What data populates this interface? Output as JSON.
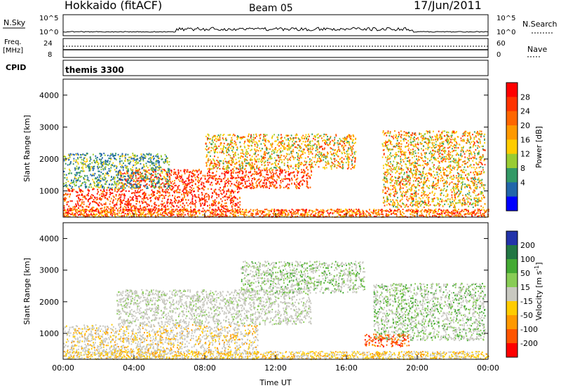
{
  "header": {
    "title": "Hokkaido (fitACF)",
    "beam": "Beam 05",
    "date": "17/Jun/2011"
  },
  "strip_panels": {
    "nsky_label": "N.Sky",
    "nsearch_label": "N.Search",
    "nsky_ticks": [
      "10^5",
      "10^0"
    ],
    "nsearch_ticks": [
      "10^5",
      "10^0"
    ],
    "freq_label_1": "Freq.",
    "freq_label_2": "[MHz]",
    "freq_ticks": [
      "24",
      "8"
    ],
    "nave_label": "Nave",
    "nave_ticks": [
      "60",
      "0"
    ],
    "cpid_label": "CPID",
    "cpid_value": "themis 3300"
  },
  "chart_data": [
    {
      "type": "heatmap",
      "name": "power-panel",
      "ylabel": "Slant Range [km]",
      "ylim": [
        180,
        4500
      ],
      "y_ticks": [
        1000,
        2000,
        3000,
        4000
      ],
      "x_ticks": [
        "00:00",
        "04:00",
        "08:00",
        "12:00",
        "16:00",
        "20:00",
        "00:00"
      ],
      "colorbar": {
        "label": "Power [dB]",
        "ticks": [
          "28",
          "24",
          "20",
          "16",
          "12",
          "8",
          "4"
        ],
        "colors": [
          "#ff0000",
          "#ff3300",
          "#ff6600",
          "#ff9900",
          "#ffcc00",
          "#99cc33",
          "#339966",
          "#2266aa",
          "#0000ff"
        ]
      },
      "regions": [
        {
          "t0": 0.0,
          "t1": 10.0,
          "r0": 400,
          "r1": 1100,
          "level": "high"
        },
        {
          "t0": 3.0,
          "t1": 14.0,
          "r0": 1100,
          "r1": 1700,
          "level": "high"
        },
        {
          "t0": 8.0,
          "t1": 16.5,
          "r0": 1700,
          "r1": 2800,
          "level": "mid"
        },
        {
          "t0": 18.0,
          "t1": 23.8,
          "r0": 500,
          "r1": 2900,
          "level": "mid"
        },
        {
          "t0": 0.0,
          "t1": 6.0,
          "r0": 1100,
          "r1": 2200,
          "level": "low"
        }
      ]
    },
    {
      "type": "heatmap",
      "name": "velocity-panel",
      "ylabel": "Slant Range [km]",
      "xlabel": "Time UT",
      "ylim": [
        180,
        4500
      ],
      "y_ticks": [
        1000,
        2000,
        3000,
        4000
      ],
      "x_ticks": [
        "00:00",
        "04:00",
        "08:00",
        "12:00",
        "16:00",
        "20:00",
        "00:00"
      ],
      "colorbar": {
        "label": "Velocity [m s^-1]",
        "ticks": [
          "200",
          "100",
          "50",
          "15",
          "-15",
          "-50",
          "-100",
          "-200"
        ],
        "colors": [
          "#2233aa",
          "#227744",
          "#44aa33",
          "#88cc55",
          "#c8c8c0",
          "#ffcc00",
          "#ff9900",
          "#ff5500",
          "#ff0000"
        ]
      }
    }
  ]
}
